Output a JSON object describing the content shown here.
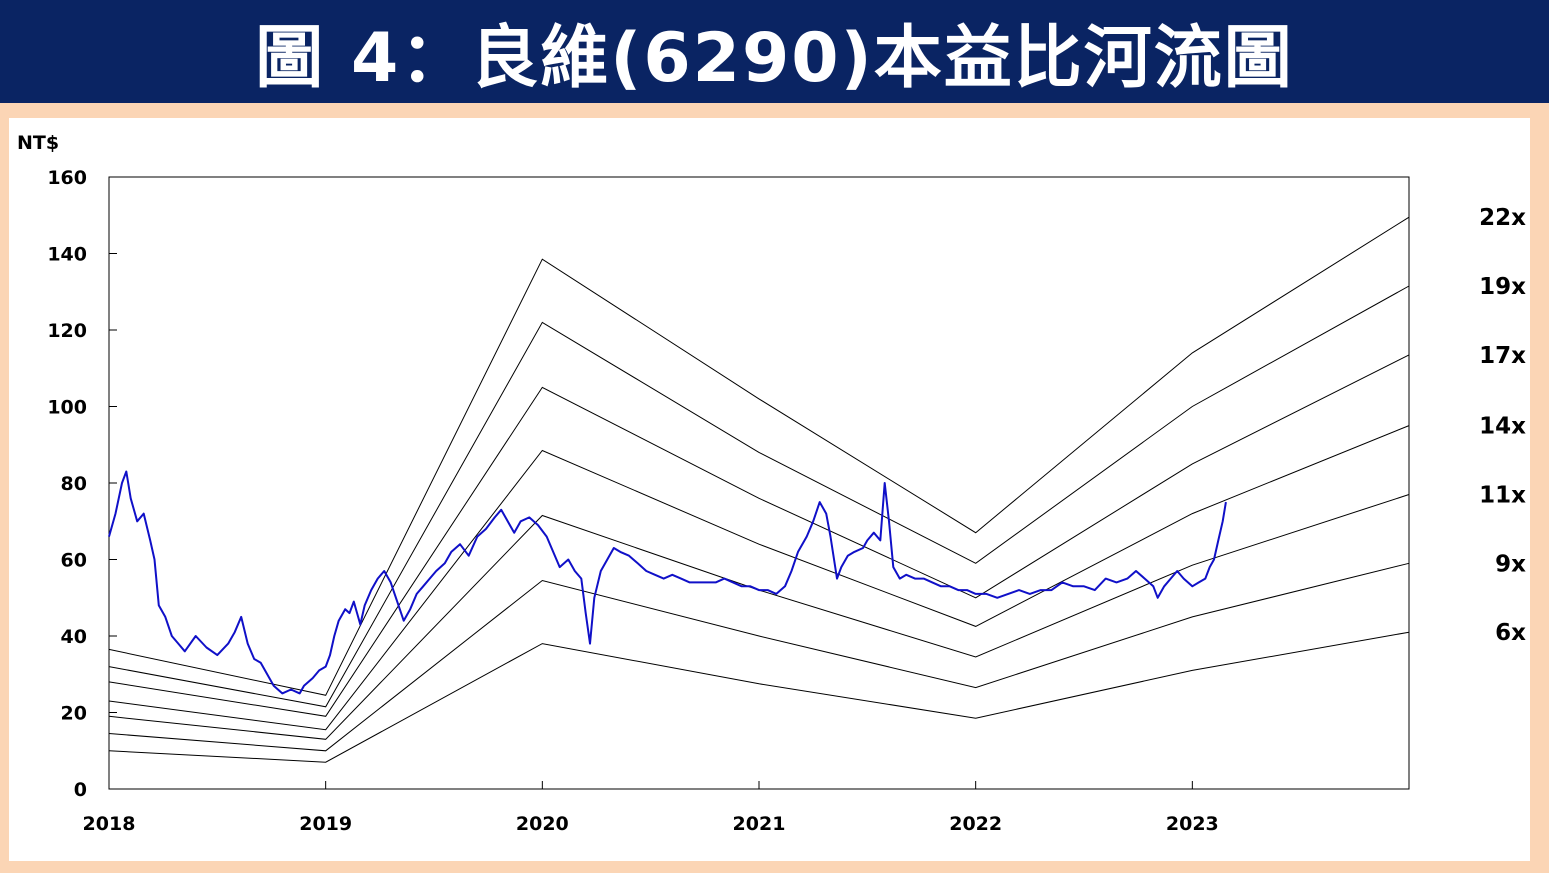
{
  "header": {
    "title": "圖 4：良維(6290)本益比河流圖"
  },
  "chart_data": {
    "type": "line",
    "title": "圖 4：良維(6290)本益比河流圖",
    "ylabel": "NT$",
    "xlabel": "",
    "xlim": [
      2018,
      2024.0
    ],
    "ylim": [
      0,
      160
    ],
    "yticks": [
      "0",
      "20",
      "40",
      "60",
      "80",
      "100",
      "120",
      "140",
      "160"
    ],
    "xticks": [
      "2018",
      "2019",
      "2020",
      "2021",
      "2022",
      "2023"
    ],
    "grid": false,
    "colors": {
      "price": "#1010c8",
      "bands": "#000000"
    },
    "bands": [
      {
        "name": "22x",
        "points": [
          [
            2018,
            36.5
          ],
          [
            2019,
            24.5
          ],
          [
            2020,
            138.5
          ],
          [
            2021,
            102
          ],
          [
            2022,
            67
          ],
          [
            2023,
            114
          ],
          [
            2024,
            149.5
          ]
        ]
      },
      {
        "name": "19x",
        "points": [
          [
            2018,
            32
          ],
          [
            2019,
            21.5
          ],
          [
            2020,
            122
          ],
          [
            2021,
            88
          ],
          [
            2022,
            59
          ],
          [
            2023,
            100
          ],
          [
            2024,
            131.5
          ]
        ]
      },
      {
        "name": "17x",
        "points": [
          [
            2018,
            28
          ],
          [
            2019,
            19
          ],
          [
            2020,
            105
          ],
          [
            2021,
            76
          ],
          [
            2022,
            50
          ],
          [
            2023,
            85
          ],
          [
            2024,
            113.5
          ]
        ]
      },
      {
        "name": "14x",
        "points": [
          [
            2018,
            23
          ],
          [
            2019,
            15.5
          ],
          [
            2020,
            88.5
          ],
          [
            2021,
            64
          ],
          [
            2022,
            42.5
          ],
          [
            2023,
            72
          ],
          [
            2024,
            95
          ]
        ]
      },
      {
        "name": "11x",
        "points": [
          [
            2018,
            19
          ],
          [
            2019,
            13
          ],
          [
            2020,
            71.5
          ],
          [
            2021,
            52
          ],
          [
            2022,
            34.5
          ],
          [
            2023,
            58.5
          ],
          [
            2024,
            77
          ]
        ]
      },
      {
        "name": "9x",
        "points": [
          [
            2018,
            14.5
          ],
          [
            2019,
            10
          ],
          [
            2020,
            54.5
          ],
          [
            2021,
            40
          ],
          [
            2022,
            26.5
          ],
          [
            2023,
            45
          ],
          [
            2024,
            59
          ]
        ]
      },
      {
        "name": "6x",
        "points": [
          [
            2018,
            10
          ],
          [
            2019,
            7
          ],
          [
            2020,
            38
          ],
          [
            2021,
            27.5
          ],
          [
            2022,
            18.5
          ],
          [
            2023,
            31
          ],
          [
            2024,
            41
          ]
        ]
      }
    ],
    "series": [
      {
        "values_xy": [
          [
            2018.0,
            66
          ],
          [
            2018.03,
            72
          ],
          [
            2018.06,
            80
          ],
          [
            2018.08,
            83
          ],
          [
            2018.1,
            76
          ],
          [
            2018.13,
            70
          ],
          [
            2018.16,
            72
          ],
          [
            2018.19,
            65
          ],
          [
            2018.21,
            60
          ],
          [
            2018.23,
            48
          ],
          [
            2018.26,
            45
          ],
          [
            2018.29,
            40
          ],
          [
            2018.32,
            38
          ],
          [
            2018.35,
            36
          ],
          [
            2018.4,
            40
          ],
          [
            2018.45,
            37
          ],
          [
            2018.5,
            35
          ],
          [
            2018.55,
            38
          ],
          [
            2018.58,
            41
          ],
          [
            2018.61,
            45
          ],
          [
            2018.64,
            38
          ],
          [
            2018.67,
            34
          ],
          [
            2018.7,
            33
          ],
          [
            2018.73,
            30
          ],
          [
            2018.76,
            27
          ],
          [
            2018.8,
            25
          ],
          [
            2018.84,
            26
          ],
          [
            2018.88,
            25
          ],
          [
            2018.9,
            27
          ],
          [
            2018.94,
            29
          ],
          [
            2018.97,
            31
          ],
          [
            2019.0,
            32
          ],
          [
            2019.02,
            35
          ],
          [
            2019.04,
            40
          ],
          [
            2019.06,
            44
          ],
          [
            2019.09,
            47
          ],
          [
            2019.11,
            46
          ],
          [
            2019.13,
            49
          ],
          [
            2019.16,
            43
          ],
          [
            2019.18,
            48
          ],
          [
            2019.21,
            52
          ],
          [
            2019.24,
            55
          ],
          [
            2019.27,
            57
          ],
          [
            2019.3,
            54
          ],
          [
            2019.33,
            49
          ],
          [
            2019.36,
            44
          ],
          [
            2019.39,
            47
          ],
          [
            2019.42,
            51
          ],
          [
            2019.45,
            53
          ],
          [
            2019.48,
            55
          ],
          [
            2019.51,
            57
          ],
          [
            2019.55,
            59
          ],
          [
            2019.58,
            62
          ],
          [
            2019.62,
            64
          ],
          [
            2019.66,
            61
          ],
          [
            2019.7,
            66
          ],
          [
            2019.74,
            68
          ],
          [
            2019.78,
            71
          ],
          [
            2019.81,
            73
          ],
          [
            2019.84,
            70
          ],
          [
            2019.87,
            67
          ],
          [
            2019.9,
            70
          ],
          [
            2019.94,
            71
          ],
          [
            2019.98,
            69
          ],
          [
            2020.02,
            66
          ],
          [
            2020.05,
            62
          ],
          [
            2020.08,
            58
          ],
          [
            2020.12,
            60
          ],
          [
            2020.15,
            57
          ],
          [
            2020.18,
            55
          ],
          [
            2020.2,
            46
          ],
          [
            2020.22,
            38
          ],
          [
            2020.24,
            50
          ],
          [
            2020.27,
            57
          ],
          [
            2020.3,
            60
          ],
          [
            2020.33,
            63
          ],
          [
            2020.36,
            62
          ],
          [
            2020.4,
            61
          ],
          [
            2020.44,
            59
          ],
          [
            2020.48,
            57
          ],
          [
            2020.52,
            56
          ],
          [
            2020.56,
            55
          ],
          [
            2020.6,
            56
          ],
          [
            2020.64,
            55
          ],
          [
            2020.68,
            54
          ],
          [
            2020.72,
            54
          ],
          [
            2020.76,
            54
          ],
          [
            2020.8,
            54
          ],
          [
            2020.84,
            55
          ],
          [
            2020.88,
            54
          ],
          [
            2020.92,
            53
          ],
          [
            2020.96,
            53
          ],
          [
            2021.0,
            52
          ],
          [
            2021.04,
            52
          ],
          [
            2021.08,
            51
          ],
          [
            2021.12,
            53
          ],
          [
            2021.15,
            57
          ],
          [
            2021.18,
            62
          ],
          [
            2021.22,
            66
          ],
          [
            2021.25,
            70
          ],
          [
            2021.28,
            75
          ],
          [
            2021.31,
            72
          ],
          [
            2021.33,
            66
          ],
          [
            2021.36,
            55
          ],
          [
            2021.38,
            58
          ],
          [
            2021.41,
            61
          ],
          [
            2021.44,
            62
          ],
          [
            2021.48,
            63
          ],
          [
            2021.5,
            65
          ],
          [
            2021.53,
            67
          ],
          [
            2021.56,
            65
          ],
          [
            2021.58,
            80
          ],
          [
            2021.6,
            70
          ],
          [
            2021.62,
            58
          ],
          [
            2021.65,
            55
          ],
          [
            2021.68,
            56
          ],
          [
            2021.72,
            55
          ],
          [
            2021.76,
            55
          ],
          [
            2021.8,
            54
          ],
          [
            2021.84,
            53
          ],
          [
            2021.88,
            53
          ],
          [
            2021.92,
            52
          ],
          [
            2021.96,
            52
          ],
          [
            2022.0,
            51
          ],
          [
            2022.05,
            51
          ],
          [
            2022.1,
            50
          ],
          [
            2022.15,
            51
          ],
          [
            2022.2,
            52
          ],
          [
            2022.25,
            51
          ],
          [
            2022.3,
            52
          ],
          [
            2022.35,
            52
          ],
          [
            2022.4,
            54
          ],
          [
            2022.45,
            53
          ],
          [
            2022.5,
            53
          ],
          [
            2022.55,
            52
          ],
          [
            2022.6,
            55
          ],
          [
            2022.65,
            54
          ],
          [
            2022.7,
            55
          ],
          [
            2022.74,
            57
          ],
          [
            2022.78,
            55
          ],
          [
            2022.82,
            53
          ],
          [
            2022.84,
            50
          ],
          [
            2022.87,
            53
          ],
          [
            2022.9,
            55
          ],
          [
            2022.93,
            57
          ],
          [
            2022.96,
            55
          ],
          [
            2023.0,
            53
          ],
          [
            2023.03,
            54
          ],
          [
            2023.06,
            55
          ],
          [
            2023.08,
            58
          ],
          [
            2023.1,
            60
          ],
          [
            2023.12,
            65
          ],
          [
            2023.14,
            70
          ],
          [
            2023.155,
            75
          ]
        ]
      }
    ]
  }
}
